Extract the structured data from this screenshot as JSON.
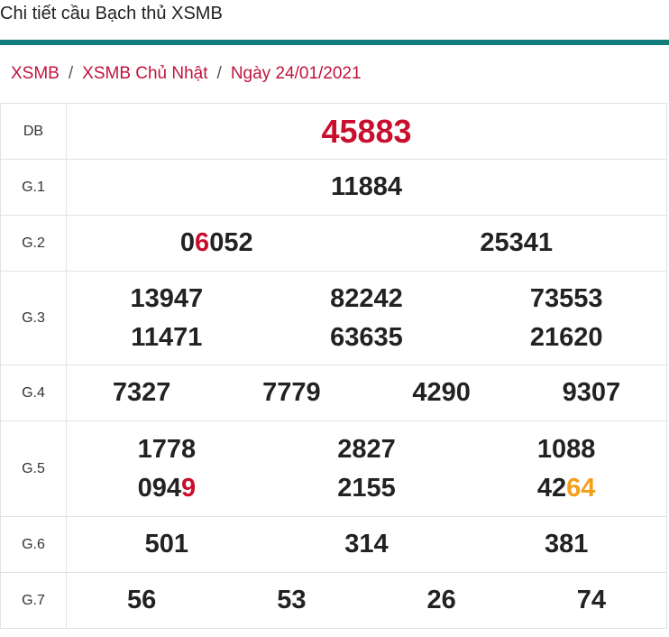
{
  "header": {
    "title": "Chi tiết cầu Bạch thủ XSMB"
  },
  "breadcrumb": {
    "items": [
      "XSMB",
      "XSMB Chủ Nhật",
      "Ngày 24/01/2021"
    ],
    "separator": "/"
  },
  "table": {
    "rows": [
      {
        "label": "DB",
        "lines": [
          [
            "45883"
          ]
        ]
      },
      {
        "label": "G.1",
        "lines": [
          [
            "11884"
          ]
        ]
      },
      {
        "label": "G.2",
        "lines": [
          [
            {
              "segments": [
                {
                  "text": "0"
                },
                {
                  "text": "6",
                  "color": "#c8102e"
                },
                {
                  "text": "052"
                }
              ]
            },
            "25341"
          ]
        ]
      },
      {
        "label": "G.3",
        "lines": [
          [
            "13947",
            "82242",
            "73553"
          ],
          [
            "11471",
            "63635",
            "21620"
          ]
        ]
      },
      {
        "label": "G.4",
        "lines": [
          [
            "7327",
            "7779",
            "4290",
            "9307"
          ]
        ]
      },
      {
        "label": "G.5",
        "lines": [
          [
            "1778",
            "2827",
            "1088"
          ],
          [
            {
              "segments": [
                {
                  "text": "094"
                },
                {
                  "text": "9",
                  "color": "#c8102e"
                }
              ]
            },
            "2155",
            {
              "segments": [
                {
                  "text": "42"
                },
                {
                  "text": "64",
                  "color": "#f5a01a"
                }
              ]
            }
          ]
        ]
      },
      {
        "label": "G.6",
        "lines": [
          [
            "501",
            "314",
            "381"
          ]
        ]
      },
      {
        "label": "G.7",
        "lines": [
          [
            "56",
            "53",
            "26",
            "74"
          ]
        ]
      }
    ]
  }
}
